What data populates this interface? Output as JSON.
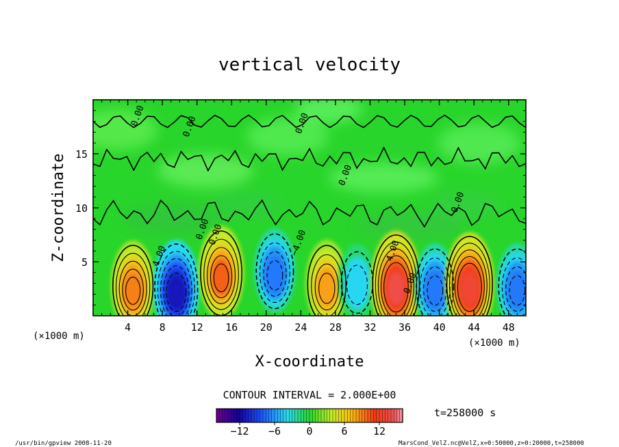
{
  "chart_data": {
    "type": "heatmap",
    "title": "vertical velocity",
    "xlabel": "X-coordinate",
    "ylabel": "Z-coordinate",
    "x_unit_left": "(×1000 m)",
    "x_unit_right": "(×1000 m)",
    "xlim": [
      0,
      50
    ],
    "ylim": [
      0,
      20
    ],
    "x_ticks": [
      4,
      8,
      12,
      16,
      20,
      24,
      28,
      32,
      36,
      40,
      44,
      48
    ],
    "y_ticks": [
      5,
      10,
      15
    ],
    "contour_interval_text": "CONTOUR INTERVAL = 2.000E+00",
    "time_text": "t=258000 s",
    "colorbar": {
      "min": -16,
      "max": 16,
      "ticks": [
        -12,
        -6,
        0,
        6,
        12
      ],
      "tick_labels": [
        "−12",
        "−6",
        "0",
        "6",
        "12"
      ]
    },
    "contour_labels": [
      "0.00",
      "0.00",
      "0.00",
      "4.00",
      "0.00",
      "−4.00",
      "0.00",
      "4.00",
      "0.00",
      "0.00",
      "0.00"
    ],
    "cells": [
      {
        "x": 4.6,
        "z": 2.8,
        "value": 9
      },
      {
        "x": 9.6,
        "z": 2.6,
        "value": -11
      },
      {
        "x": 14.8,
        "z": 4.0,
        "value": 10
      },
      {
        "x": 21.0,
        "z": 4.2,
        "value": -7
      },
      {
        "x": 27.0,
        "z": 3.0,
        "value": 8
      },
      {
        "x": 30.5,
        "z": 3.2,
        "value": -4
      },
      {
        "x": 35.0,
        "z": 3.0,
        "value": 14
      },
      {
        "x": 39.5,
        "z": 2.8,
        "value": -7
      },
      {
        "x": 43.5,
        "z": 3.0,
        "value": 13
      },
      {
        "x": 49.0,
        "z": 2.8,
        "value": -7
      }
    ]
  },
  "footer": {
    "left": "/usr/bin/gpview  2008-11-20",
    "right": "MarsCond_VelZ.nc@VelZ,x=0:50000,z=0:20000,t=258000"
  }
}
